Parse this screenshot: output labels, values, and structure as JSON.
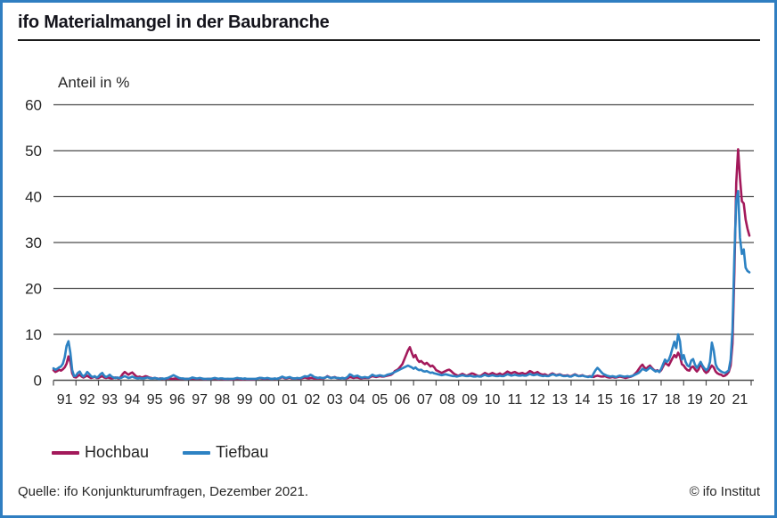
{
  "header": {
    "title": "ifo Materialmangel in der Baubranche"
  },
  "footer": {
    "source": "Quelle: ifo Konjunkturumfragen, Dezember 2021.",
    "copyright": "© ifo Institut"
  },
  "colors": {
    "border": "#2f7ec1",
    "grid": "#4b4b4b",
    "text": "#262626",
    "hochbau": "#a3195b",
    "tiefbau": "#2d82c3"
  },
  "chart_data": {
    "type": "line",
    "title": "ifo Materialmangel in der Baubranche",
    "ylabel": "Anteil in %",
    "xlabel": "",
    "ylim": [
      0,
      60
    ],
    "y_ticks": [
      0,
      10,
      20,
      30,
      40,
      50,
      60
    ],
    "x_unit": "year (monthly data, Jan 1991 – Dec 2021)",
    "x_tick_labels": [
      "91",
      "92",
      "93",
      "94",
      "95",
      "96",
      "97",
      "98",
      "99",
      "00",
      "01",
      "02",
      "03",
      "04",
      "05",
      "06",
      "07",
      "08",
      "09",
      "10",
      "11",
      "12",
      "13",
      "14",
      "15",
      "16",
      "17",
      "18",
      "19",
      "20",
      "21"
    ],
    "grid": "horizontal",
    "legend_position": "bottom-left",
    "series": [
      {
        "name": "Hochbau",
        "color": "#a3195b",
        "values": [
          2.2,
          1.8,
          2.0,
          2.3,
          2.1,
          2.4,
          2.8,
          3.6,
          5.2,
          4.0,
          1.5,
          0.7,
          0.6,
          0.9,
          1.2,
          0.8,
          0.6,
          0.8,
          1.0,
          0.7,
          0.5,
          0.6,
          0.8,
          0.5,
          0.5,
          0.7,
          0.9,
          0.6,
          0.5,
          0.6,
          0.5,
          0.4,
          0.5,
          0.6,
          0.5,
          0.4,
          0.8,
          1.4,
          1.8,
          1.5,
          1.2,
          1.5,
          1.7,
          1.3,
          0.9,
          0.7,
          0.8,
          0.6,
          0.7,
          0.9,
          0.8,
          0.6,
          0.5,
          0.4,
          0.5,
          0.4,
          0.3,
          0.4,
          0.3,
          0.3,
          0.3,
          0.4,
          0.4,
          0.3,
          0.3,
          0.4,
          0.3,
          0.3,
          0.3,
          0.3,
          0.3,
          0.3,
          0.3,
          0.3,
          0.4,
          0.3,
          0.3,
          0.3,
          0.3,
          0.3,
          0.3,
          0.2,
          0.3,
          0.3,
          0.3,
          0.3,
          0.3,
          0.3,
          0.2,
          0.3,
          0.3,
          0.2,
          0.2,
          0.3,
          0.2,
          0.2,
          0.2,
          0.3,
          0.3,
          0.3,
          0.2,
          0.2,
          0.3,
          0.2,
          0.2,
          0.2,
          0.2,
          0.2,
          0.3,
          0.4,
          0.5,
          0.4,
          0.3,
          0.3,
          0.4,
          0.3,
          0.3,
          0.3,
          0.3,
          0.3,
          0.4,
          0.5,
          0.7,
          0.5,
          0.4,
          0.5,
          0.6,
          0.4,
          0.4,
          0.4,
          0.4,
          0.3,
          0.4,
          0.5,
          0.6,
          0.5,
          0.4,
          0.5,
          0.5,
          0.4,
          0.4,
          0.4,
          0.4,
          0.4,
          0.4,
          0.6,
          0.9,
          0.7,
          0.5,
          0.6,
          0.7,
          0.5,
          0.4,
          0.4,
          0.5,
          0.4,
          0.4,
          0.5,
          0.7,
          0.6,
          0.5,
          0.6,
          0.6,
          0.5,
          0.4,
          0.5,
          0.5,
          0.5,
          0.5,
          0.7,
          0.9,
          0.8,
          0.7,
          0.8,
          0.9,
          0.8,
          0.8,
          0.9,
          1.0,
          1.1,
          1.2,
          1.5,
          2.0,
          2.2,
          2.5,
          3.0,
          3.5,
          4.5,
          5.5,
          6.5,
          7.2,
          6.0,
          5.0,
          5.5,
          4.5,
          4.0,
          4.2,
          3.8,
          3.5,
          3.8,
          3.4,
          3.0,
          3.2,
          2.8,
          2.2,
          2.0,
          1.8,
          1.6,
          1.8,
          2.0,
          2.2,
          2.3,
          2.0,
          1.6,
          1.3,
          1.1,
          1.0,
          1.2,
          1.4,
          1.2,
          1.0,
          1.1,
          1.3,
          1.5,
          1.4,
          1.2,
          1.0,
          0.9,
          1.0,
          1.3,
          1.6,
          1.4,
          1.2,
          1.4,
          1.6,
          1.4,
          1.2,
          1.3,
          1.5,
          1.2,
          1.3,
          1.6,
          1.9,
          1.7,
          1.5,
          1.7,
          1.8,
          1.6,
          1.4,
          1.5,
          1.6,
          1.4,
          1.4,
          1.7,
          2.0,
          1.8,
          1.5,
          1.6,
          1.8,
          1.5,
          1.3,
          1.2,
          1.3,
          1.1,
          1.0,
          1.3,
          1.5,
          1.3,
          1.1,
          1.2,
          1.3,
          1.1,
          1.0,
          1.0,
          1.1,
          0.9,
          0.9,
          1.1,
          1.3,
          1.1,
          0.9,
          1.0,
          1.1,
          0.9,
          0.8,
          0.8,
          0.9,
          0.8,
          0.7,
          0.9,
          1.0,
          0.9,
          0.8,
          0.8,
          0.9,
          0.7,
          0.6,
          0.6,
          0.7,
          0.6,
          0.6,
          0.7,
          0.8,
          0.7,
          0.6,
          0.5,
          0.6,
          0.7,
          0.8,
          1.0,
          1.4,
          1.8,
          2.4,
          3.0,
          3.4,
          2.8,
          2.5,
          2.9,
          3.2,
          2.7,
          2.3,
          2.0,
          2.2,
          1.8,
          2.2,
          3.0,
          3.8,
          3.5,
          3.2,
          4.0,
          4.8,
          5.5,
          5.0,
          6.0,
          5.2,
          3.5,
          3.2,
          2.6,
          2.2,
          2.1,
          2.8,
          3.0,
          2.4,
          1.9,
          2.4,
          3.6,
          2.8,
          2.0,
          1.6,
          1.9,
          2.6,
          3.2,
          2.8,
          1.9,
          1.5,
          1.3,
          1.2,
          0.9,
          1.0,
          1.3,
          1.8,
          3.2,
          8.0,
          23.5,
          43.0,
          50.3,
          44.0,
          39.0,
          38.5,
          35.0,
          33.0,
          31.5
        ]
      },
      {
        "name": "Tiefbau",
        "color": "#2d82c3",
        "values": [
          2.6,
          2.3,
          2.5,
          2.8,
          3.0,
          3.6,
          5.0,
          7.5,
          8.5,
          6.0,
          2.2,
          0.9,
          1.0,
          1.6,
          1.9,
          1.2,
          0.8,
          1.2,
          1.8,
          1.4,
          0.9,
          0.7,
          0.9,
          0.6,
          0.8,
          1.3,
          1.6,
          1.0,
          0.7,
          0.9,
          1.2,
          0.8,
          0.6,
          0.5,
          0.6,
          0.5,
          0.5,
          0.7,
          0.9,
          0.7,
          0.5,
          0.6,
          0.8,
          0.6,
          0.5,
          0.4,
          0.5,
          0.4,
          0.4,
          0.5,
          0.6,
          0.5,
          0.4,
          0.4,
          0.5,
          0.4,
          0.3,
          0.3,
          0.4,
          0.3,
          0.4,
          0.5,
          0.7,
          0.9,
          1.1,
          0.9,
          0.7,
          0.5,
          0.4,
          0.4,
          0.3,
          0.3,
          0.3,
          0.4,
          0.6,
          0.5,
          0.4,
          0.4,
          0.5,
          0.4,
          0.3,
          0.3,
          0.3,
          0.3,
          0.3,
          0.4,
          0.5,
          0.4,
          0.3,
          0.4,
          0.4,
          0.3,
          0.3,
          0.3,
          0.3,
          0.3,
          0.3,
          0.4,
          0.5,
          0.4,
          0.4,
          0.3,
          0.4,
          0.3,
          0.3,
          0.3,
          0.3,
          0.3,
          0.3,
          0.4,
          0.5,
          0.5,
          0.4,
          0.4,
          0.5,
          0.4,
          0.3,
          0.3,
          0.4,
          0.3,
          0.4,
          0.6,
          0.8,
          0.6,
          0.5,
          0.6,
          0.7,
          0.5,
          0.4,
          0.4,
          0.5,
          0.4,
          0.5,
          0.7,
          0.9,
          0.8,
          0.9,
          1.2,
          1.0,
          0.7,
          0.6,
          0.5,
          0.6,
          0.5,
          0.5,
          0.6,
          0.8,
          0.6,
          0.5,
          0.6,
          0.6,
          0.5,
          0.5,
          0.4,
          0.5,
          0.4,
          0.5,
          0.8,
          1.3,
          1.1,
          0.8,
          0.9,
          1.0,
          0.8,
          0.6,
          0.6,
          0.7,
          0.6,
          0.6,
          0.9,
          1.2,
          1.0,
          0.9,
          1.0,
          1.1,
          1.0,
          0.9,
          1.0,
          1.2,
          1.3,
          1.4,
          1.6,
          1.8,
          2.0,
          2.2,
          2.4,
          2.6,
          2.8,
          3.0,
          3.2,
          3.0,
          2.8,
          2.5,
          2.8,
          2.4,
          2.2,
          2.3,
          2.0,
          1.9,
          2.0,
          1.8,
          1.6,
          1.7,
          1.5,
          1.4,
          1.3,
          1.2,
          1.1,
          1.2,
          1.3,
          1.2,
          1.1,
          1.0,
          0.9,
          0.9,
          0.8,
          0.9,
          1.0,
          1.1,
          1.0,
          0.9,
          0.9,
          1.0,
          0.9,
          0.8,
          0.8,
          0.9,
          0.8,
          0.8,
          1.0,
          1.2,
          1.0,
          0.9,
          1.0,
          1.1,
          1.0,
          0.9,
          0.9,
          1.0,
          0.9,
          0.9,
          1.1,
          1.3,
          1.2,
          1.0,
          1.1,
          1.2,
          1.1,
          1.0,
          1.0,
          1.1,
          1.0,
          1.0,
          1.2,
          1.4,
          1.2,
          1.1,
          1.2,
          1.3,
          1.1,
          1.0,
          0.9,
          1.0,
          0.9,
          0.9,
          1.1,
          1.3,
          1.2,
          1.0,
          1.1,
          1.2,
          1.0,
          0.9,
          0.9,
          1.0,
          0.8,
          0.8,
          1.0,
          1.2,
          1.0,
          0.9,
          0.9,
          1.0,
          0.9,
          0.8,
          0.7,
          0.8,
          0.7,
          1.5,
          2.2,
          2.7,
          2.3,
          1.8,
          1.4,
          1.2,
          1.0,
          0.9,
          0.8,
          0.9,
          0.8,
          0.7,
          0.9,
          1.0,
          0.9,
          0.8,
          0.8,
          0.9,
          0.8,
          0.9,
          1.0,
          1.2,
          1.4,
          1.6,
          2.0,
          2.5,
          2.3,
          2.1,
          2.4,
          2.8,
          2.5,
          2.2,
          1.9,
          2.1,
          1.8,
          2.5,
          3.5,
          4.5,
          4.0,
          4.4,
          5.5,
          7.0,
          8.4,
          7.0,
          10.0,
          8.5,
          4.5,
          5.5,
          4.0,
          3.2,
          3.0,
          4.3,
          4.6,
          3.4,
          2.7,
          3.3,
          4.0,
          3.2,
          2.6,
          2.2,
          2.6,
          4.0,
          8.2,
          6.5,
          3.5,
          2.6,
          2.2,
          1.9,
          1.7,
          1.6,
          1.8,
          2.2,
          4.5,
          11.0,
          27.0,
          39.0,
          41.2,
          31.0,
          27.5,
          28.5,
          24.5,
          23.8,
          23.5
        ]
      }
    ]
  },
  "legend": {
    "items": [
      {
        "label": "Hochbau",
        "color": "#a3195b"
      },
      {
        "label": "Tiefbau",
        "color": "#2d82c3"
      }
    ]
  }
}
